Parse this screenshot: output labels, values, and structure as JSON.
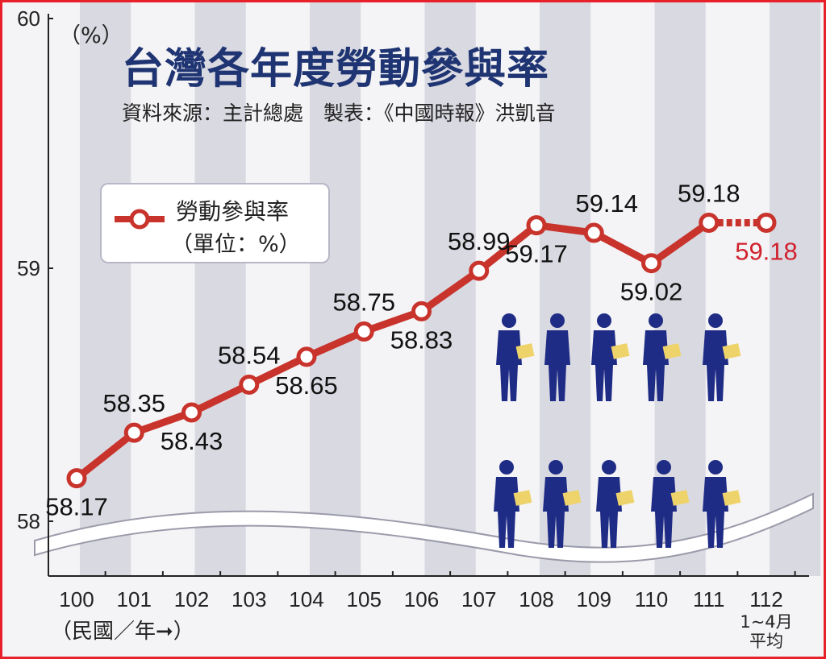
{
  "title": "台灣各年度勞動參與率",
  "source": "資料來源：主計總處　製表：《中國時報》洪凱音",
  "unit_label": "（%）",
  "legend": {
    "name": "勞動參與率",
    "unit": "（單位：%）"
  },
  "x_axis_note": "（民國／年➞）",
  "colors": {
    "line": "#c8332c",
    "highlight": "#d0222e",
    "border": "#e8202a",
    "title": "#1f3472",
    "stripe": "#d9d9e1",
    "worker": "#1f2c86",
    "paper": "#eed36a"
  },
  "chart_data": {
    "type": "line",
    "x": [
      "100",
      "101",
      "102",
      "103",
      "104",
      "105",
      "106",
      "107",
      "108",
      "109",
      "110",
      "111",
      "112"
    ],
    "x_tick_notes": {
      "112": [
        "1~4月",
        "平均"
      ]
    },
    "y_ticks": [
      "58",
      "59",
      "60"
    ],
    "ylim": [
      57.8,
      60
    ],
    "series": [
      {
        "name": "勞動參與率",
        "values": [
          58.17,
          58.35,
          58.43,
          58.54,
          58.65,
          58.75,
          58.83,
          58.99,
          59.17,
          59.14,
          59.02,
          59.18,
          59.18
        ],
        "labels": [
          "58.17",
          "58.35",
          "58.43",
          "58.54",
          "58.65",
          "58.75",
          "58.83",
          "58.99",
          "59.17",
          "59.14",
          "59.02",
          "59.18",
          "59.18"
        ]
      }
    ],
    "last_segment_dashed": true,
    "grid": false,
    "background_stripes": true,
    "legend_position": "top-left"
  }
}
